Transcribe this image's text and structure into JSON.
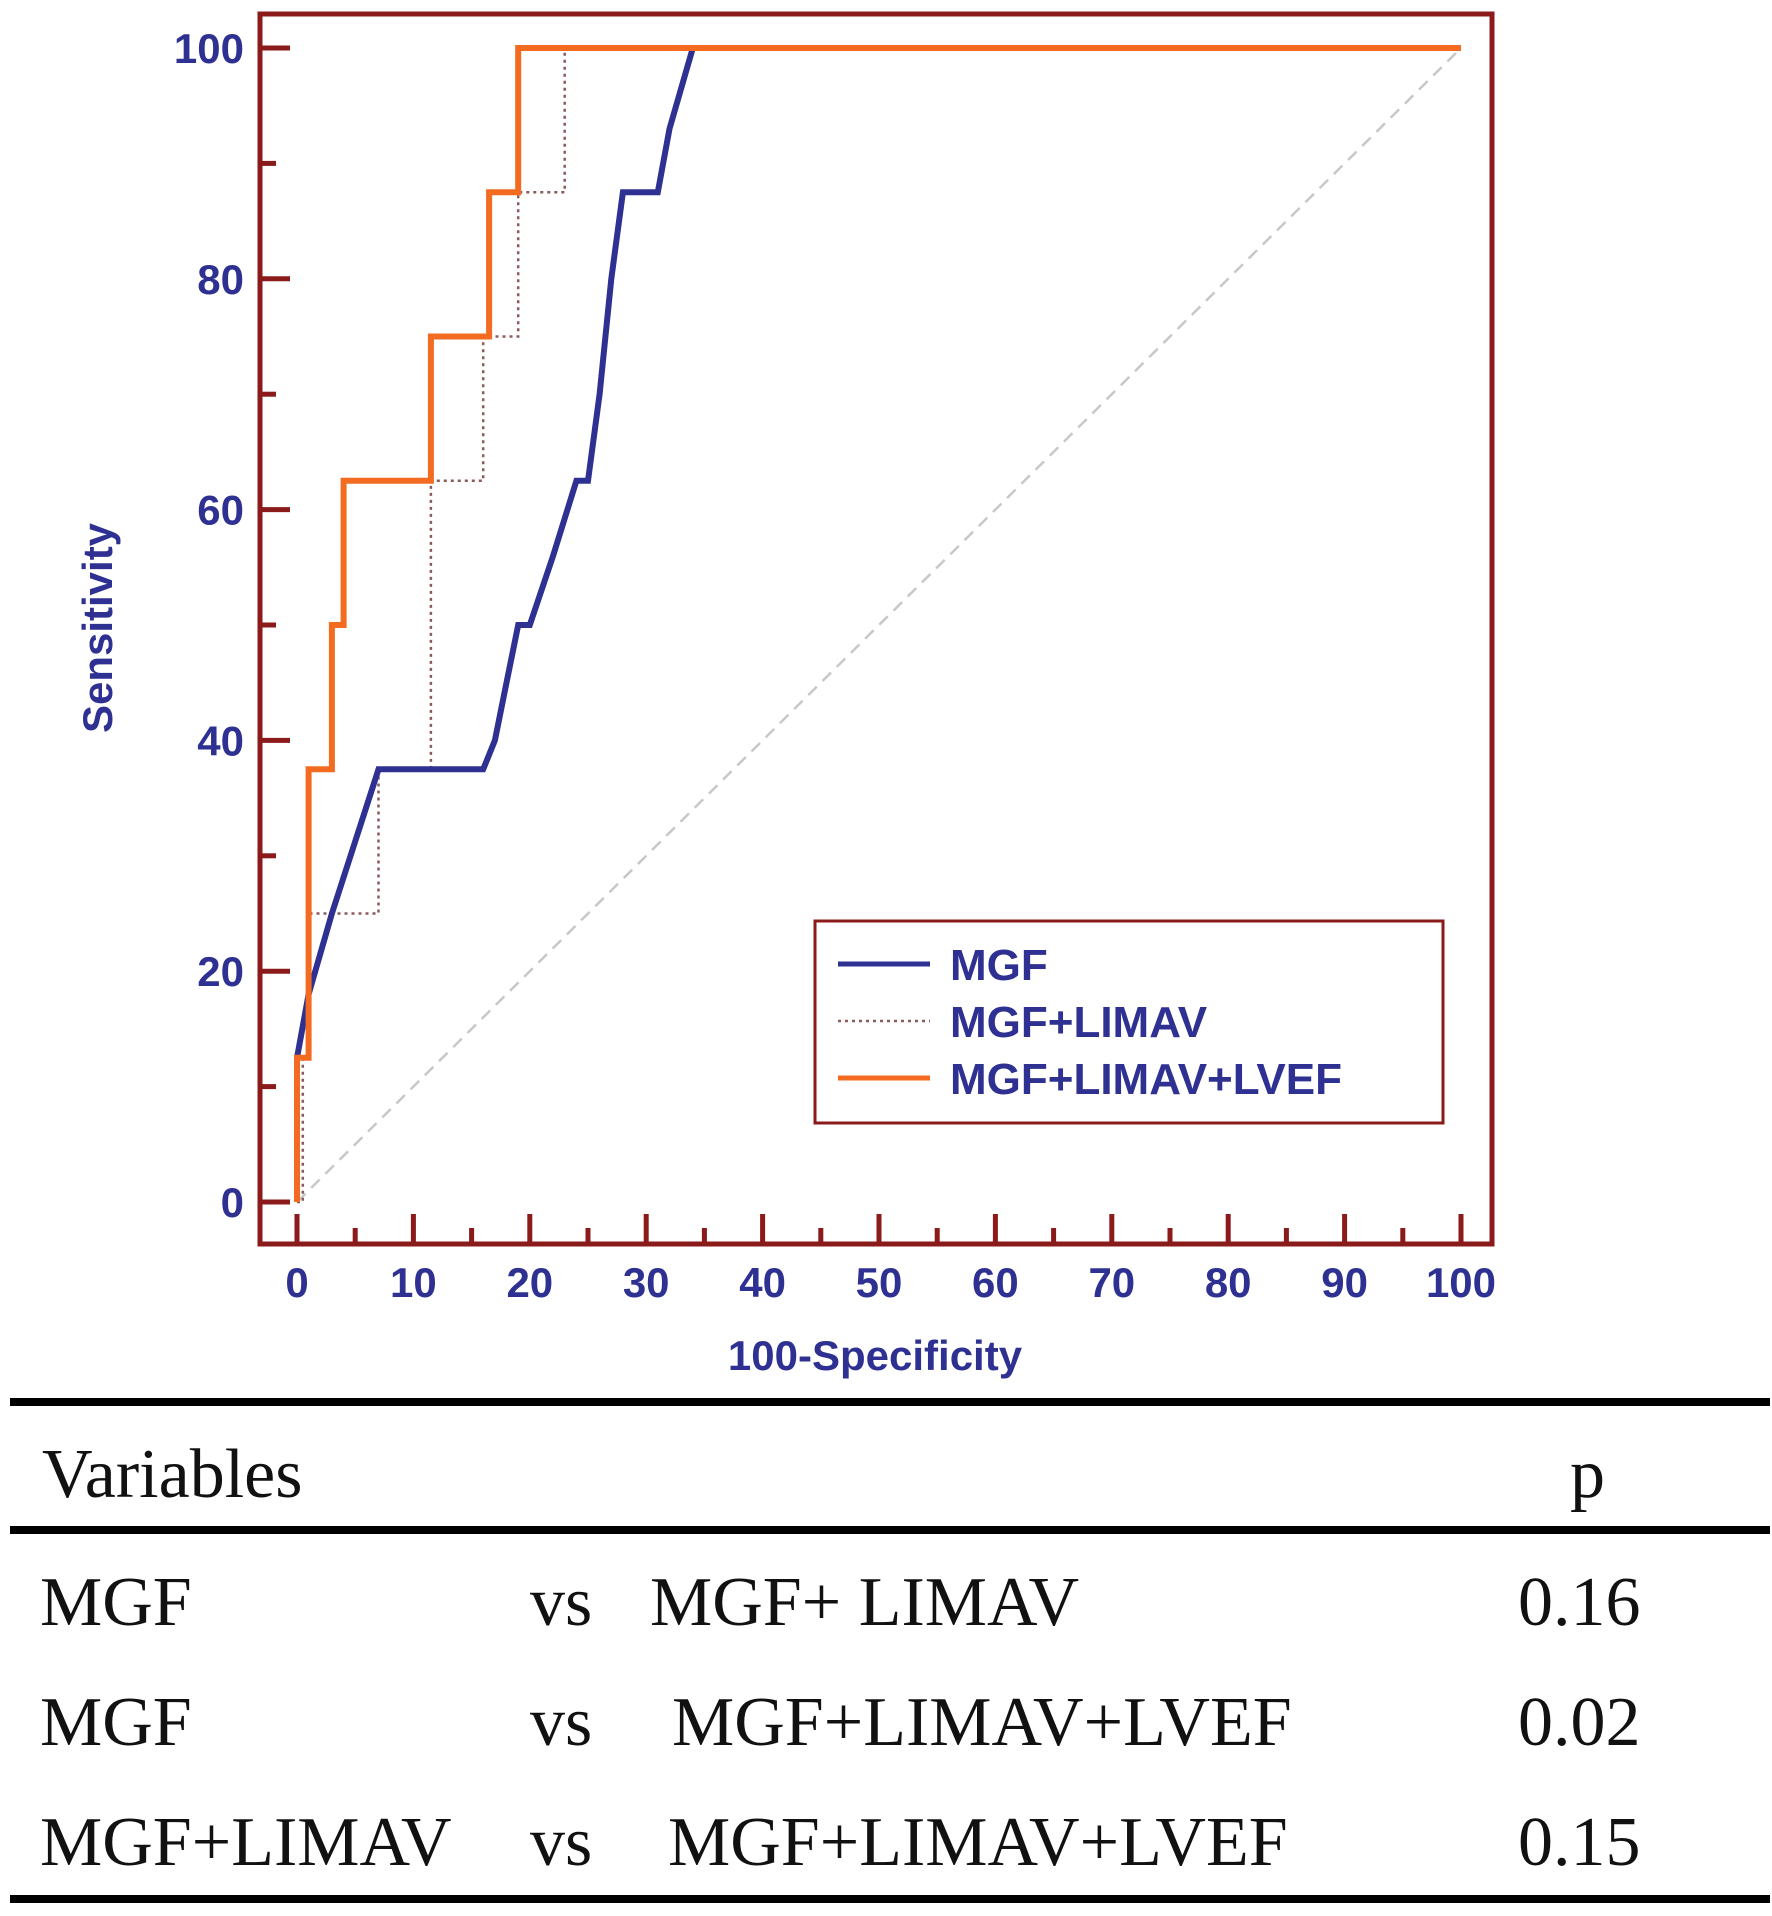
{
  "chart_data": {
    "type": "line",
    "xlabel": "100-Specificity",
    "ylabel": "Sensitivity",
    "xlim": [
      0,
      100
    ],
    "ylim": [
      0,
      100
    ],
    "xticks": [
      0,
      10,
      20,
      30,
      40,
      50,
      60,
      70,
      80,
      90,
      100
    ],
    "yticks": [
      0,
      20,
      40,
      60,
      80,
      100
    ],
    "grid": false,
    "legend_position": "bottom-right",
    "series": [
      {
        "name": "MGF",
        "style": "solid",
        "color": "#2e3192",
        "x": [
          0,
          0,
          1,
          3,
          7,
          12,
          16,
          17,
          18,
          19,
          20,
          22,
          24,
          25,
          26,
          27,
          28,
          29,
          31,
          32,
          34,
          100
        ],
        "y": [
          0,
          12.5,
          18,
          25,
          37.5,
          37.5,
          37.5,
          40,
          45,
          50,
          50,
          56,
          62.5,
          62.5,
          70,
          80,
          87.5,
          87.5,
          87.5,
          93,
          100,
          100
        ]
      },
      {
        "name": "MGF+LIMAV",
        "style": "dotted",
        "color": "#8b5a5a",
        "x": [
          0,
          0,
          0.5,
          0.5,
          1,
          1,
          7,
          7,
          11.5,
          11.5,
          16,
          16,
          19,
          19,
          23,
          23,
          100
        ],
        "y": [
          0,
          0,
          0,
          12.5,
          12.5,
          25,
          25,
          37.5,
          37.5,
          62.5,
          62.5,
          75,
          75,
          87.5,
          87.5,
          100,
          100
        ]
      },
      {
        "name": "MGF+LIMAV+LVEF",
        "style": "solid",
        "color": "#f26b21",
        "x": [
          0,
          0,
          1,
          1,
          3,
          3,
          4,
          4,
          11.5,
          11.5,
          16.5,
          16.5,
          19,
          19,
          100
        ],
        "y": [
          0,
          12.5,
          12.5,
          37.5,
          37.5,
          50,
          50,
          62.5,
          62.5,
          75,
          75,
          87.5,
          87.5,
          100,
          100
        ]
      }
    ],
    "reference_line": {
      "style": "dashed",
      "color": "#c8c8c8",
      "x": [
        0,
        100
      ],
      "y": [
        0,
        100
      ]
    },
    "colors": {
      "frame": "#8b1a1a",
      "labels": "#2e3192"
    }
  },
  "table": {
    "header": {
      "variables": "Variables",
      "p": "p"
    },
    "rows": [
      {
        "a": "MGF",
        "vs": "vs",
        "b": "MGF+ LIMAV",
        "p": "0.16"
      },
      {
        "a": "MGF",
        "vs": "vs",
        "b": "MGF+LIMAV+LVEF",
        "p": "0.02"
      },
      {
        "a": "MGF+LIMAV",
        "vs": "vs",
        "b": "MGF+LIMAV+LVEF",
        "p": "0.15"
      }
    ]
  }
}
